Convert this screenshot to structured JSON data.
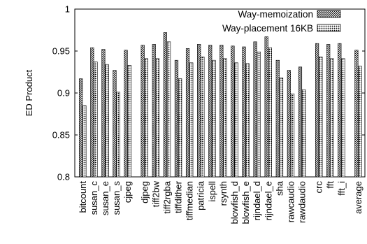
{
  "chart_data": {
    "type": "bar",
    "title": "",
    "xlabel": "",
    "ylabel": "ED Product",
    "ylim": [
      0.8,
      1.0
    ],
    "yticks": [
      "0.8",
      "0.85",
      "0.9",
      "0.95",
      "1"
    ],
    "grid": false,
    "legend_position": "top-right",
    "categories": [
      "bitcount",
      "susan_c",
      "susan_e",
      "susan_s",
      "cjpeg",
      "djpeg",
      "tiff2bw",
      "tiff2rgba",
      "tiffdither",
      "tiffmedian",
      "patricia",
      "ispell",
      "rsynth",
      "blowfish_d",
      "blowfish_e",
      "rijndael_d",
      "rijndael_e",
      "sha",
      "rawcaudio",
      "rawdaudio",
      "crc",
      "fft",
      "fft_i",
      "average"
    ],
    "gaps_before": [
      5,
      20,
      23
    ],
    "series": [
      {
        "name": "Way-memoization",
        "values": [
          0.917,
          0.954,
          0.952,
          0.927,
          0.951,
          0.957,
          0.958,
          0.972,
          0.939,
          0.953,
          0.958,
          0.957,
          0.957,
          0.956,
          0.955,
          0.961,
          0.967,
          0.939,
          0.927,
          0.931,
          0.959,
          0.958,
          0.959,
          0.951
        ]
      },
      {
        "name": "Way-placement 16KB",
        "values": [
          0.885,
          0.937,
          0.934,
          0.901,
          0.933,
          0.941,
          0.941,
          0.961,
          0.917,
          0.936,
          0.943,
          0.939,
          0.941,
          0.936,
          0.935,
          0.949,
          0.954,
          0.918,
          0.899,
          0.904,
          0.943,
          0.941,
          0.941,
          0.932
        ]
      }
    ]
  }
}
